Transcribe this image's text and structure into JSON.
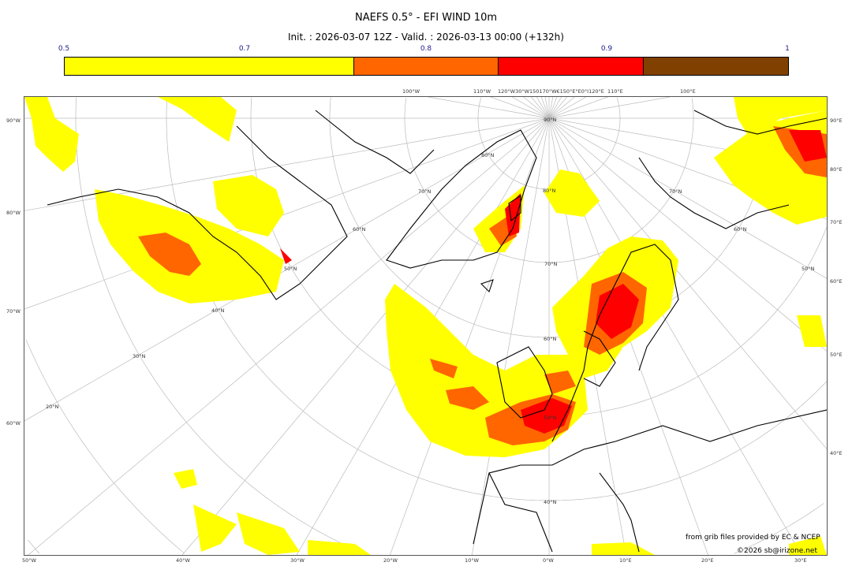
{
  "title": "NAEFS 0.5° - EFI WIND 10m",
  "subtitle": "Init. : 2026-03-07 12Z - Valid. : 2026-03-13 00:00 (+132h)",
  "colorbar": {
    "ticks": [
      "0.5",
      "0.7",
      "0.8",
      "0.9",
      "1"
    ],
    "bins": [
      {
        "from": 0.5,
        "to": 0.7,
        "color": "#ffff00"
      },
      {
        "from": 0.7,
        "to": 0.8,
        "color": "#ff6600"
      },
      {
        "from": 0.8,
        "to": 0.9,
        "color": "#ff0000"
      },
      {
        "from": 0.9,
        "to": 1.0,
        "color": "#804000"
      }
    ]
  },
  "map": {
    "projection": "polar stereographic (north pole)",
    "left_labels": [
      "90°W",
      "80°W",
      "70°W",
      "60°W"
    ],
    "right_labels": [
      "90°E",
      "80°E",
      "70°E",
      "60°E",
      "50°E",
      "40°E"
    ],
    "bottom_labels": [
      "50°W",
      "40°W",
      "30°W",
      "20°W",
      "10°W",
      "0°W",
      "10°E",
      "20°E",
      "30°E"
    ],
    "top_labels": [
      "100°W",
      "110°W",
      "120°W30°W150170°W€150°E°E0°I120°E",
      "110°E",
      "100°E"
    ],
    "lat_labels": [
      "90°N",
      "80°N",
      "80°N",
      "70°N",
      "70°N",
      "70°N",
      "60°N",
      "60°N",
      "60°N",
      "50°N",
      "50°N",
      "50°N",
      "40°N",
      "40°N",
      "30°N",
      "20°N"
    ],
    "coastline_color": "#000000",
    "grid_color": "#bbbbbb"
  },
  "footer": {
    "credit": "from grib files provided by EC & NCEP",
    "copyright": "©2026 sb@irizone.net"
  }
}
